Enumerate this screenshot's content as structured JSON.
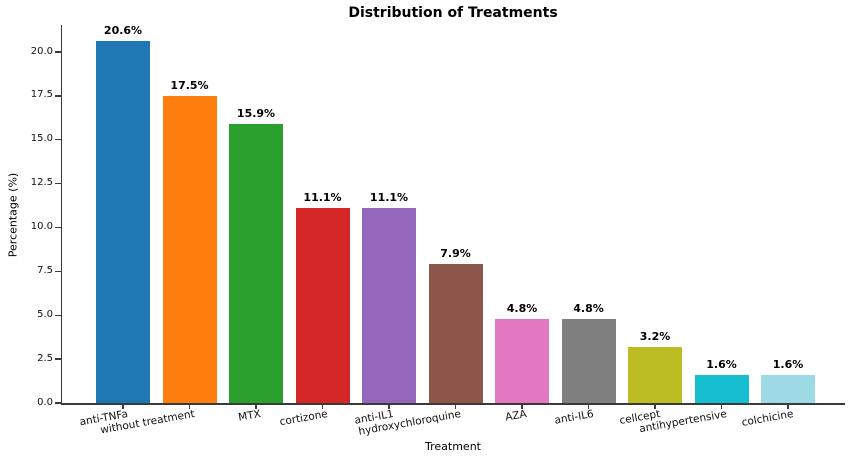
{
  "chart_data": {
    "type": "bar",
    "title": "Distribution of Treatments",
    "xlabel": "Treatment",
    "ylabel": "Percentage (%)",
    "categories": [
      "anti-TNFa",
      "without treatment",
      "MTX",
      "cortizone",
      "anti-IL1",
      "hydroxychloroquine",
      "AZA",
      "anti-IL6",
      "cellcept",
      "antihypertensive",
      "colchicine"
    ],
    "values": [
      20.6,
      17.5,
      15.9,
      11.1,
      11.1,
      7.9,
      4.8,
      4.8,
      3.2,
      1.6,
      1.6
    ],
    "value_labels": [
      "20.6%",
      "17.5%",
      "15.9%",
      "11.1%",
      "11.1%",
      "7.9%",
      "4.8%",
      "4.8%",
      "3.2%",
      "1.6%",
      "1.6%"
    ],
    "bar_colors": [
      "#1f77b4",
      "#ff7f0e",
      "#2ca02c",
      "#d62728",
      "#9467bd",
      "#8c564b",
      "#e377c2",
      "#7f7f7f",
      "#bcbd22",
      "#17becf",
      "#9edae5"
    ],
    "ylim": [
      0,
      21.6
    ],
    "yticks": [
      0.0,
      2.5,
      5.0,
      7.5,
      10.0,
      12.5,
      15.0,
      17.5,
      20.0
    ],
    "ytick_labels": [
      "0.0",
      "2.5",
      "5.0",
      "7.5",
      "10.0",
      "12.5",
      "15.0",
      "17.5",
      "20.0"
    ],
    "grid": false,
    "legend": null,
    "background_color": "#ffffff",
    "text_color": "#000000"
  }
}
